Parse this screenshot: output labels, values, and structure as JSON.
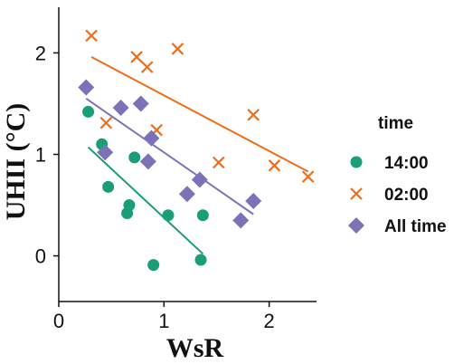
{
  "chart_data": {
    "type": "scatter",
    "xlabel": "WsR",
    "ylabel": "UHII (°C)",
    "xlim": [
      0,
      2.45
    ],
    "ylim": [
      -0.45,
      2.45
    ],
    "x_ticks": [
      0,
      1,
      2
    ],
    "y_ticks": [
      0,
      1,
      2
    ],
    "legend_title": "time",
    "legend_position": "right",
    "series": [
      {
        "name": "14:00",
        "marker": "circle",
        "color": "#1a9e77",
        "points": [
          [
            0.28,
            1.42
          ],
          [
            0.41,
            1.1
          ],
          [
            0.47,
            0.68
          ],
          [
            0.65,
            0.42
          ],
          [
            0.67,
            0.5
          ],
          [
            0.72,
            0.97
          ],
          [
            0.9,
            -0.09
          ],
          [
            1.04,
            0.4
          ],
          [
            1.37,
            0.4
          ],
          [
            1.35,
            -0.04
          ]
        ],
        "fit": [
          [
            0.28,
            1.07
          ],
          [
            1.37,
            0.02
          ]
        ]
      },
      {
        "name": "02:00",
        "marker": "x",
        "color": "#ef6c1a",
        "points": [
          [
            0.31,
            2.17
          ],
          [
            0.74,
            1.96
          ],
          [
            0.84,
            1.86
          ],
          [
            1.13,
            2.04
          ],
          [
            0.45,
            1.31
          ],
          [
            0.93,
            1.24
          ],
          [
            1.52,
            0.92
          ],
          [
            1.85,
            1.39
          ],
          [
            2.05,
            0.89
          ],
          [
            2.37,
            0.78
          ]
        ],
        "fit": [
          [
            0.31,
            1.96
          ],
          [
            2.37,
            0.83
          ]
        ]
      },
      {
        "name": "All time",
        "marker": "diamond",
        "color": "#7b72b8",
        "points": [
          [
            0.26,
            1.66
          ],
          [
            0.44,
            1.02
          ],
          [
            0.59,
            1.46
          ],
          [
            0.78,
            1.5
          ],
          [
            0.85,
            0.93
          ],
          [
            0.88,
            1.16
          ],
          [
            1.22,
            0.61
          ],
          [
            1.34,
            0.75
          ],
          [
            1.73,
            0.35
          ],
          [
            1.85,
            0.54
          ]
        ],
        "fit": [
          [
            0.26,
            1.55
          ],
          [
            1.85,
            0.41
          ]
        ]
      }
    ]
  }
}
